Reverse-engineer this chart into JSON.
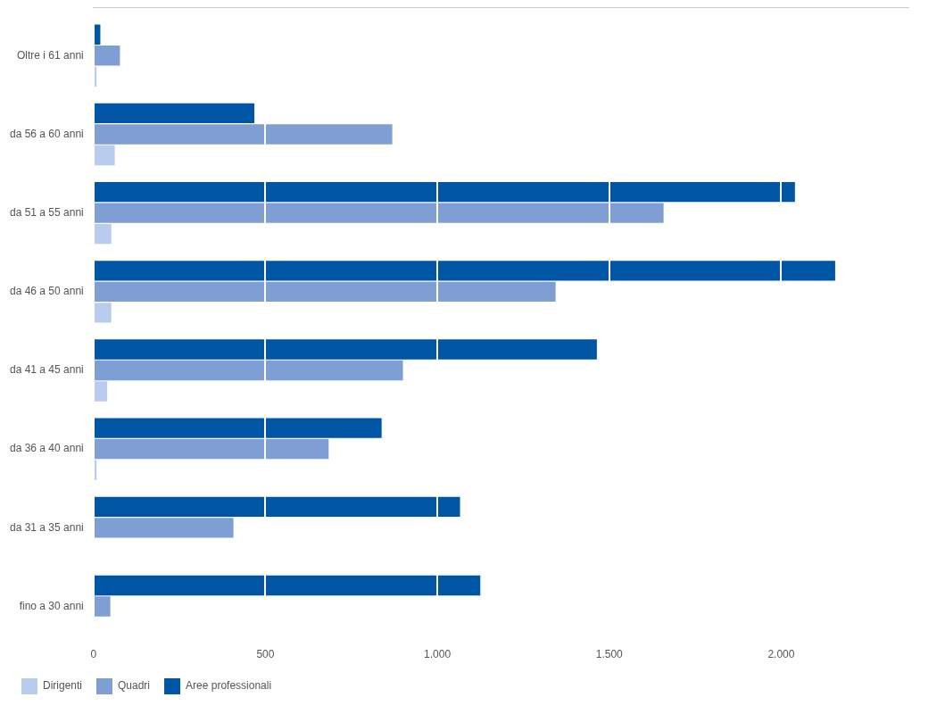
{
  "chart_data": {
    "type": "bar",
    "orientation": "horizontal",
    "categories": [
      "Oltre i 61 anni",
      "da 56 a 60 anni",
      "da 51 a 55 anni",
      "da 46 a 50 anni",
      "da 41 a 45 anni",
      "da 36 a 40 anni",
      "da 31 a 35 anni",
      "fino a 30 anni"
    ],
    "series": [
      {
        "name": "Aree professionali",
        "color": "#0055a5",
        "values": [
          20,
          468,
          2040,
          2157,
          1464,
          838,
          1066,
          1125
        ]
      },
      {
        "name": "Quadri",
        "color": "#7f9fd4",
        "values": [
          77,
          869,
          1658,
          1344,
          900,
          684,
          407,
          49
        ]
      },
      {
        "name": "Dirigenti",
        "color": "#b8cdee",
        "values": [
          9,
          62,
          52,
          52,
          40,
          9,
          null,
          null
        ]
      }
    ],
    "xlim": [
      0,
      2370
    ],
    "xticks": [
      0,
      500,
      {
        "value": 1000,
        "label": "1.000"
      },
      {
        "value": 1500,
        "label": "1.500"
      },
      {
        "value": 2000,
        "label": "2.000"
      }
    ],
    "grid": "x",
    "legend": "bottom"
  }
}
